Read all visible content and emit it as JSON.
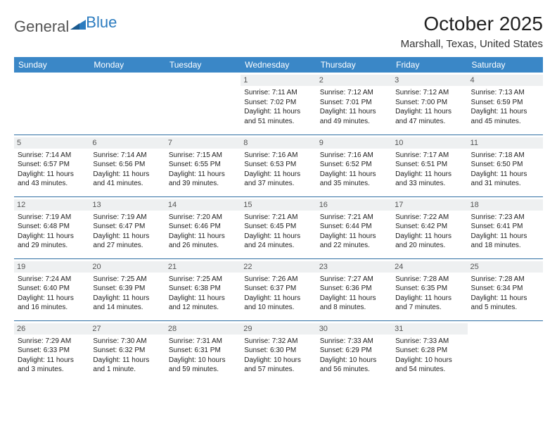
{
  "logo": {
    "text1": "General",
    "text2": "Blue"
  },
  "title": "October 2025",
  "location": "Marshall, Texas, United States",
  "header_bg": "#3a87c7",
  "rule_color": "#2f6fa3",
  "shade_bg": "#eef0f1",
  "day_headers": [
    "Sunday",
    "Monday",
    "Tuesday",
    "Wednesday",
    "Thursday",
    "Friday",
    "Saturday"
  ],
  "weeks": [
    [
      {
        "n": "",
        "sr": "",
        "ss": "",
        "dl": ""
      },
      {
        "n": "",
        "sr": "",
        "ss": "",
        "dl": ""
      },
      {
        "n": "",
        "sr": "",
        "ss": "",
        "dl": ""
      },
      {
        "n": "1",
        "sr": "7:11 AM",
        "ss": "7:02 PM",
        "dl": "11 hours and 51 minutes."
      },
      {
        "n": "2",
        "sr": "7:12 AM",
        "ss": "7:01 PM",
        "dl": "11 hours and 49 minutes."
      },
      {
        "n": "3",
        "sr": "7:12 AM",
        "ss": "7:00 PM",
        "dl": "11 hours and 47 minutes."
      },
      {
        "n": "4",
        "sr": "7:13 AM",
        "ss": "6:59 PM",
        "dl": "11 hours and 45 minutes."
      }
    ],
    [
      {
        "n": "5",
        "sr": "7:14 AM",
        "ss": "6:57 PM",
        "dl": "11 hours and 43 minutes."
      },
      {
        "n": "6",
        "sr": "7:14 AM",
        "ss": "6:56 PM",
        "dl": "11 hours and 41 minutes."
      },
      {
        "n": "7",
        "sr": "7:15 AM",
        "ss": "6:55 PM",
        "dl": "11 hours and 39 minutes."
      },
      {
        "n": "8",
        "sr": "7:16 AM",
        "ss": "6:53 PM",
        "dl": "11 hours and 37 minutes."
      },
      {
        "n": "9",
        "sr": "7:16 AM",
        "ss": "6:52 PM",
        "dl": "11 hours and 35 minutes."
      },
      {
        "n": "10",
        "sr": "7:17 AM",
        "ss": "6:51 PM",
        "dl": "11 hours and 33 minutes."
      },
      {
        "n": "11",
        "sr": "7:18 AM",
        "ss": "6:50 PM",
        "dl": "11 hours and 31 minutes."
      }
    ],
    [
      {
        "n": "12",
        "sr": "7:19 AM",
        "ss": "6:48 PM",
        "dl": "11 hours and 29 minutes."
      },
      {
        "n": "13",
        "sr": "7:19 AM",
        "ss": "6:47 PM",
        "dl": "11 hours and 27 minutes."
      },
      {
        "n": "14",
        "sr": "7:20 AM",
        "ss": "6:46 PM",
        "dl": "11 hours and 26 minutes."
      },
      {
        "n": "15",
        "sr": "7:21 AM",
        "ss": "6:45 PM",
        "dl": "11 hours and 24 minutes."
      },
      {
        "n": "16",
        "sr": "7:21 AM",
        "ss": "6:44 PM",
        "dl": "11 hours and 22 minutes."
      },
      {
        "n": "17",
        "sr": "7:22 AM",
        "ss": "6:42 PM",
        "dl": "11 hours and 20 minutes."
      },
      {
        "n": "18",
        "sr": "7:23 AM",
        "ss": "6:41 PM",
        "dl": "11 hours and 18 minutes."
      }
    ],
    [
      {
        "n": "19",
        "sr": "7:24 AM",
        "ss": "6:40 PM",
        "dl": "11 hours and 16 minutes."
      },
      {
        "n": "20",
        "sr": "7:25 AM",
        "ss": "6:39 PM",
        "dl": "11 hours and 14 minutes."
      },
      {
        "n": "21",
        "sr": "7:25 AM",
        "ss": "6:38 PM",
        "dl": "11 hours and 12 minutes."
      },
      {
        "n": "22",
        "sr": "7:26 AM",
        "ss": "6:37 PM",
        "dl": "11 hours and 10 minutes."
      },
      {
        "n": "23",
        "sr": "7:27 AM",
        "ss": "6:36 PM",
        "dl": "11 hours and 8 minutes."
      },
      {
        "n": "24",
        "sr": "7:28 AM",
        "ss": "6:35 PM",
        "dl": "11 hours and 7 minutes."
      },
      {
        "n": "25",
        "sr": "7:28 AM",
        "ss": "6:34 PM",
        "dl": "11 hours and 5 minutes."
      }
    ],
    [
      {
        "n": "26",
        "sr": "7:29 AM",
        "ss": "6:33 PM",
        "dl": "11 hours and 3 minutes."
      },
      {
        "n": "27",
        "sr": "7:30 AM",
        "ss": "6:32 PM",
        "dl": "11 hours and 1 minute."
      },
      {
        "n": "28",
        "sr": "7:31 AM",
        "ss": "6:31 PM",
        "dl": "10 hours and 59 minutes."
      },
      {
        "n": "29",
        "sr": "7:32 AM",
        "ss": "6:30 PM",
        "dl": "10 hours and 57 minutes."
      },
      {
        "n": "30",
        "sr": "7:33 AM",
        "ss": "6:29 PM",
        "dl": "10 hours and 56 minutes."
      },
      {
        "n": "31",
        "sr": "7:33 AM",
        "ss": "6:28 PM",
        "dl": "10 hours and 54 minutes."
      },
      {
        "n": "",
        "sr": "",
        "ss": "",
        "dl": ""
      }
    ]
  ],
  "labels": {
    "sunrise": "Sunrise:",
    "sunset": "Sunset:",
    "daylight": "Daylight:"
  }
}
